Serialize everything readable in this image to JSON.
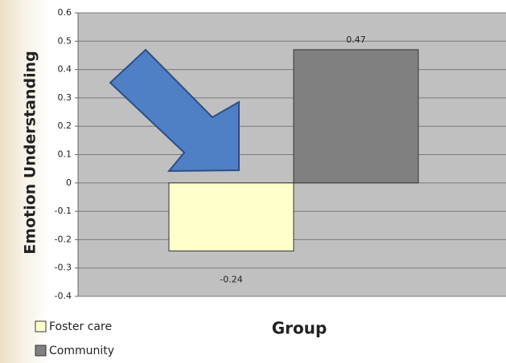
{
  "chart_data": {
    "type": "bar",
    "y_label": "Emotion Understanding",
    "x_label": "Group",
    "categories": [
      null
    ],
    "series": [
      {
        "name": "Foster care",
        "color": "#ffffcc",
        "values": [
          -0.24
        ]
      },
      {
        "name": "Community",
        "color": "#808080",
        "values": [
          0.47
        ]
      }
    ],
    "ylim": [
      -0.4,
      0.6
    ],
    "yticks": [
      -0.4,
      -0.3,
      -0.2,
      -0.1,
      0,
      0.1,
      0.2,
      0.3,
      0.4,
      0.5,
      0.6
    ],
    "grid": true,
    "legend": "bottom-left"
  }
}
